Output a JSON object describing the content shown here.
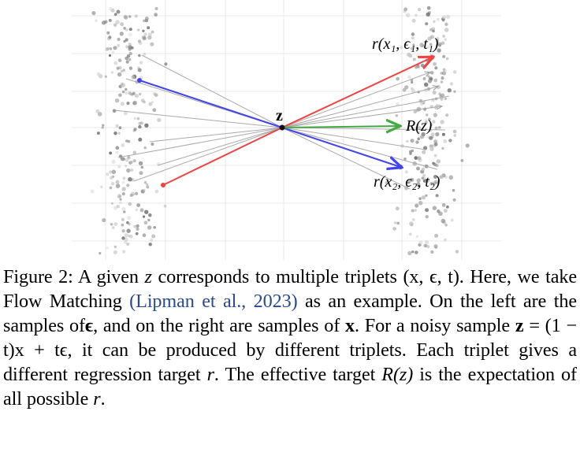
{
  "figure": {
    "labels": {
      "z": "z",
      "r1": "r(x₁, ϵ₁, t₁)",
      "R": "R(z)",
      "r2": "r(x₂, ϵ₂, t₂)"
    },
    "colors": {
      "red": "#ee4444",
      "blue": "#4444ee",
      "green": "#44aa44",
      "gray_line": "#999999",
      "grid": "#e8e8e8",
      "dot": "#888888"
    }
  },
  "caption": {
    "fig_label": "Figure 2:",
    "s1": "A given",
    "z1": "z",
    "s2": "corresponds to multiple triplets",
    "triplet": "(x, ϵ, t).",
    "s3": "Here, we take Flow Matching",
    "cite_open": "(",
    "cite_author": "Lipman et al.",
    "cite_sep": ", ",
    "cite_year": "2023",
    "cite_close": ")",
    "s4": "as an example. On the left are the samples of",
    "eps": "ϵ",
    "s5": ", and on the right are samples of",
    "x": "x",
    "s6": ". For a noisy sample",
    "zb": "z",
    "eq": "= (1 − t)x + tϵ",
    "s7": ", it can be produced by different triplets. Each triplet gives a different regression target",
    "r": "r",
    "s8": ". The effective target",
    "Rz": "R(z)",
    "s9": "is the expectation of all possible",
    "r2": "r",
    "s10": "."
  }
}
